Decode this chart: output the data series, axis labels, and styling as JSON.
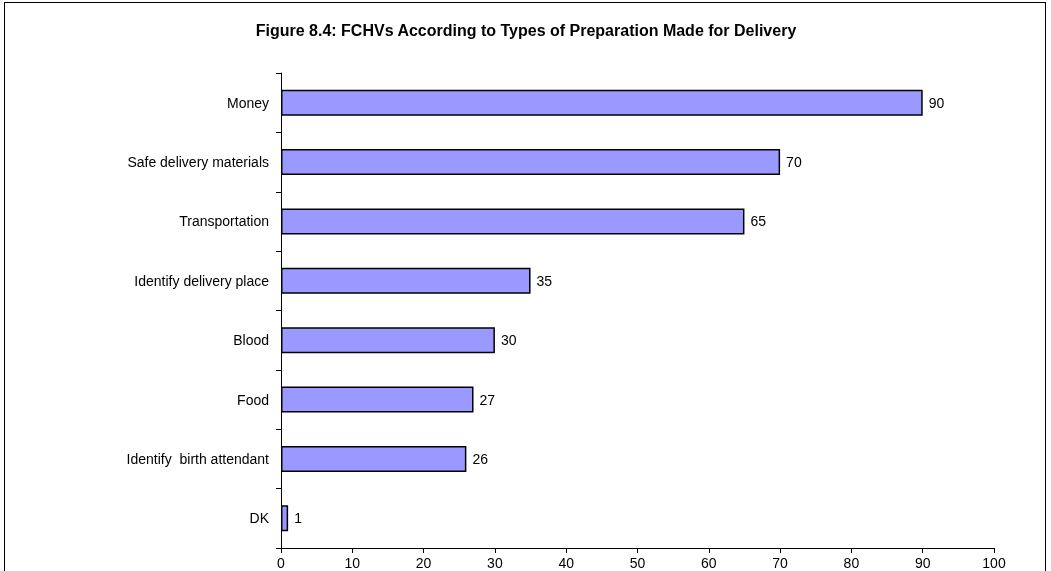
{
  "chart_data": {
    "type": "bar",
    "orientation": "horizontal",
    "title": "Figure 8.4: FCHVs According to Types of Preparation Made for Delivery",
    "categories": [
      "Money",
      "Safe delivery materials",
      "Transportation",
      "Identify delivery place",
      "Blood",
      "Food",
      "Identify  birth attendant",
      "DK"
    ],
    "values": [
      90,
      70,
      65,
      35,
      30,
      27,
      26,
      1
    ],
    "color": "#9999ff",
    "xlim": [
      0,
      100
    ],
    "xticks": [
      0,
      10,
      20,
      30,
      40,
      50,
      60,
      70,
      80,
      90,
      100
    ],
    "grid": false,
    "data_labels": true
  }
}
